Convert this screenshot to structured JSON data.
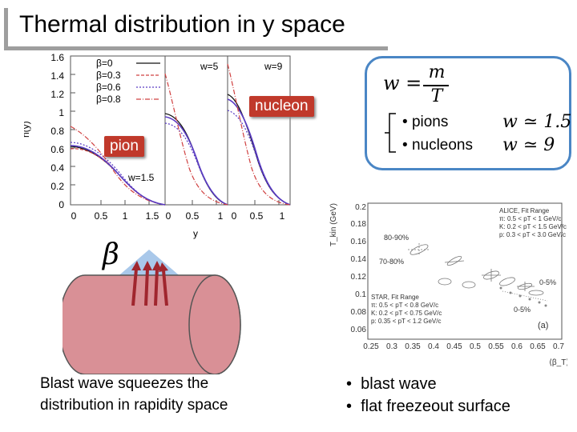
{
  "slide": {
    "title": "Thermal distribution in y space"
  },
  "ny_plot": {
    "y_axis_label": "n(y)",
    "x_axis_label": "y",
    "y_ticks": [
      "1.6",
      "1.4",
      "1.2",
      "1",
      "0.8",
      "0.6",
      "0.4",
      "0.2",
      "0"
    ],
    "panel1_x_ticks": [
      "0",
      "0.5",
      "1",
      "1.5"
    ],
    "panel2_x_ticks": [
      "0",
      "0.5",
      "1"
    ],
    "panel3_x_ticks": [
      "0",
      "0.5",
      "1"
    ],
    "legend": [
      "β=0",
      "β=0.3",
      "β=0.6",
      "β=0.8"
    ],
    "panel_labels": [
      "w=1.5",
      "w=5",
      "w=9"
    ]
  },
  "tags": {
    "nucleon": "nucleon",
    "pion": "pion"
  },
  "formula_box": {
    "w_label": "w =",
    "numerator": "m",
    "denominator": "T",
    "items": [
      {
        "label": "pions",
        "value": "w ≃ 1.5"
      },
      {
        "label": "nucleons",
        "value": "w ≃ 9"
      }
    ]
  },
  "blast_diagram": {
    "beta_symbol": "β",
    "caption_line1": "Blast wave squeezes the",
    "caption_line2": "distribution in rapidity space"
  },
  "alice_plot": {
    "y_label": "T_kin (GeV)",
    "x_label": "⟨β_T⟩",
    "y_ticks": [
      "0.2",
      "0.18",
      "0.16",
      "0.14",
      "0.12",
      "0.1",
      "0.08",
      "0.06"
    ],
    "x_ticks": [
      "0.25",
      "0.3",
      "0.35",
      "0.4",
      "0.45",
      "0.5",
      "0.55",
      "0.6",
      "0.65",
      "0.7"
    ],
    "alice_legend": [
      "ALICE, Fit Range",
      "π: 0.5 < pT < 1 GeV/c",
      "K: 0.2 < pT < 1.5 GeV/c",
      "p: 0.3 < pT < 3.0 GeV/c"
    ],
    "star_legend": [
      "STAR, Fit Range",
      "π: 0.5 < pT < 0.8 GeV/c",
      "K: 0.2 < pT < 0.75 GeV/c",
      "p: 0.35 < pT < 1.2 GeV/c"
    ],
    "annotations": [
      "80-90%",
      "70-80%",
      "0-5%",
      "0-5%",
      "(a)"
    ]
  },
  "bottom_bullets": [
    "blast wave",
    "flat freezeout surface"
  ],
  "colors": {
    "accent_red": "#c0392b",
    "box_blue": "#4a86c5",
    "curve_black": "#111111",
    "curve_red": "#d04040",
    "curve_purple": "#5a3cc4",
    "cylinder_fill": "#d99096",
    "arrow_red": "#a0262e",
    "arrow_bg": "#a9c8ea"
  }
}
